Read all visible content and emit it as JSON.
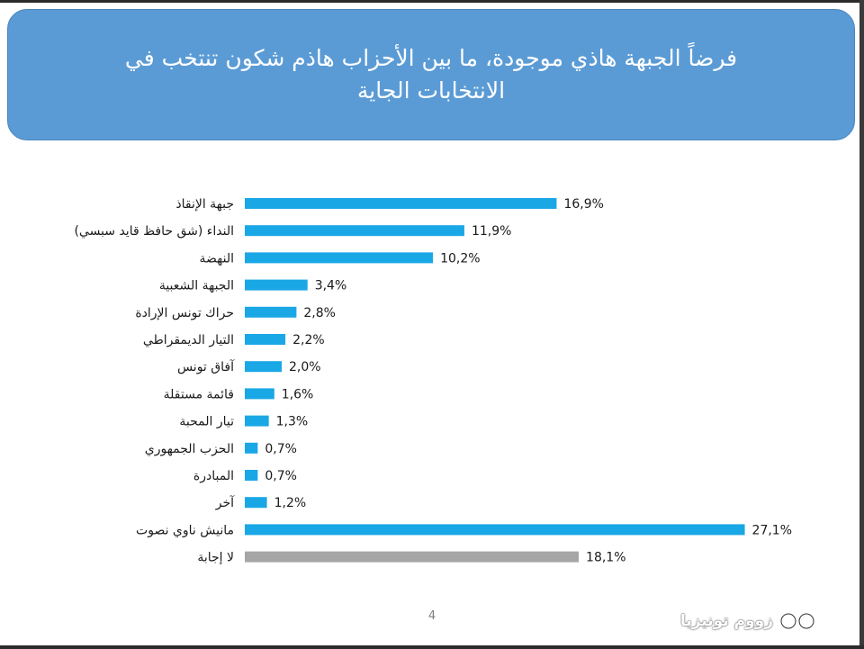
{
  "title": "فرضاً الجبهة هاذي موجودة، ما بين الأحزاب هاذم شكون تنتخب في الانتخابات الجاية",
  "page_number": "4",
  "watermark": "زووم تونيزيا",
  "colors": {
    "title_bg": "#5b9bd5",
    "bar_primary": "#1aa7e6",
    "bar_no_answer": "#a6a6a6"
  },
  "chart_data": {
    "type": "bar",
    "orientation": "horizontal",
    "title": "فرضاً الجبهة هاذي موجودة، ما بين الأحزاب هاذم شكون تنتخب في الانتخابات الجاية",
    "xlim": [
      0,
      30
    ],
    "grid": false,
    "categories": [
      "جبهة الإنقاذ",
      "النداء (شق حافظ قايد سبسي)",
      "النهضة",
      "الجبهة الشعبية",
      "حراك تونس الإرادة",
      "التيار الديمقراطي",
      "آفاق تونس",
      "قائمة مستقلة",
      "تيار المحبة",
      "الحزب الجمهوري",
      "المبادرة",
      "آخر",
      "مانيش ناوي نصوت",
      "لا إجابة"
    ],
    "values": [
      16.9,
      11.9,
      10.2,
      3.4,
      2.8,
      2.2,
      2.0,
      1.6,
      1.3,
      0.7,
      0.7,
      1.2,
      27.1,
      18.1
    ],
    "value_labels": [
      "16,9%",
      "11,9%",
      "10,2%",
      "3,4%",
      "2,8%",
      "2,2%",
      "2,0%",
      "1,6%",
      "1,3%",
      "0,7%",
      "0,7%",
      "1,2%",
      "27,1%",
      "18,1%"
    ],
    "bar_colors": [
      "#1aa7e6",
      "#1aa7e6",
      "#1aa7e6",
      "#1aa7e6",
      "#1aa7e6",
      "#1aa7e6",
      "#1aa7e6",
      "#1aa7e6",
      "#1aa7e6",
      "#1aa7e6",
      "#1aa7e6",
      "#1aa7e6",
      "#1aa7e6",
      "#a6a6a6"
    ]
  }
}
